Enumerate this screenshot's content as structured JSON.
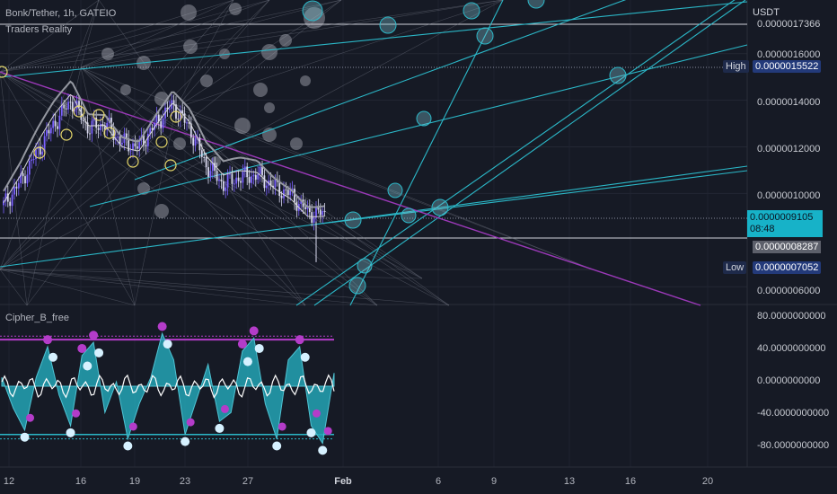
{
  "header": {
    "symbol_line": "Bonk/Tether, 1h, GATEIO",
    "indicator_line": "Traders Reality",
    "oscillator_title": "Cipher_B_free"
  },
  "axis": {
    "unit": "USDT",
    "price_ticks": [
      "0.0000017366",
      "0.0000016000",
      "0.0000014000",
      "0.0000012000",
      "0.0000010000",
      "0.0000006000"
    ],
    "osc_ticks": [
      "80.0000000000",
      "40.0000000000",
      "0.0000000000",
      "-40.0000000000",
      "-80.0000000000"
    ],
    "x_ticks": [
      "12",
      "16",
      "19",
      "23",
      "27",
      "Feb",
      "6",
      "9",
      "13",
      "16",
      "20"
    ]
  },
  "tags": {
    "high_label": "High",
    "high_value": "0.0000015522",
    "low_label": "Low",
    "low_value": "0.0000007052",
    "last_price": "0.0000009105",
    "countdown": "08:48",
    "prev_close": "0.0000008287"
  },
  "colors": {
    "background": "#161a25",
    "candle_up": "#7b61ff",
    "candle_down": "#d9d9f0",
    "trendline_cyan": "#2bb7c7",
    "trendline_purple": "#9b39b8",
    "wave_fill": "#23a5b5",
    "dot_purple": "#b43cc9",
    "dot_light": "#d6f1ff",
    "accent_price": "#17b2c8"
  },
  "chart_data": [
    {
      "type": "candlestick",
      "title": "Bonk/Tether, 1h, GATEIO",
      "ylabel": "USDT",
      "ylim": [
        5e-07,
        1.8e-06
      ],
      "x": [
        "12",
        "13",
        "14",
        "15",
        "16",
        "17",
        "18",
        "19",
        "20",
        "21",
        "22",
        "23",
        "24",
        "25",
        "26",
        "27",
        "28",
        "29",
        "30",
        "31"
      ],
      "close": [
        9.5e-07,
        1.05e-06,
        1.18e-06,
        1.3e-06,
        1.4e-06,
        1.28e-06,
        1.3e-06,
        1.22e-06,
        1.2e-06,
        1.3e-06,
        1.38e-06,
        1.28e-06,
        1.12e-06,
        1.04e-06,
        1.07e-06,
        1.08e-06,
        1.03e-06,
        9.95e-07,
        9.2e-07,
        9.105e-07
      ],
      "high_marker": 1.5522e-06,
      "low_marker": 7.052e-07,
      "last_price": 9.105e-07
    },
    {
      "type": "area",
      "title": "Cipher_B_free",
      "ylim": [
        -90,
        90
      ],
      "overbought": 53,
      "oversold": -55,
      "wave": [
        10,
        -25,
        -50,
        10,
        45,
        -10,
        -45,
        35,
        50,
        -30,
        5,
        -60,
        -20,
        10,
        60,
        30,
        -55,
        -15,
        25,
        -40,
        -30,
        40,
        55,
        -20,
        -60,
        30,
        45,
        -45,
        -65,
        15
      ]
    }
  ]
}
